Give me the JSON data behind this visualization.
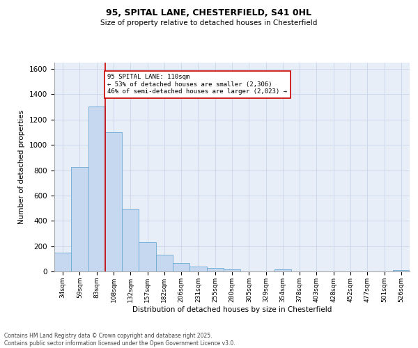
{
  "title_line1": "95, SPITAL LANE, CHESTERFIELD, S41 0HL",
  "title_line2": "Size of property relative to detached houses in Chesterfield",
  "xlabel": "Distribution of detached houses by size in Chesterfield",
  "ylabel": "Number of detached properties",
  "categories": [
    "34sqm",
    "59sqm",
    "83sqm",
    "108sqm",
    "132sqm",
    "157sqm",
    "182sqm",
    "206sqm",
    "231sqm",
    "255sqm",
    "280sqm",
    "305sqm",
    "329sqm",
    "354sqm",
    "378sqm",
    "403sqm",
    "428sqm",
    "452sqm",
    "477sqm",
    "501sqm",
    "526sqm"
  ],
  "values": [
    150,
    825,
    1305,
    1100,
    495,
    233,
    133,
    65,
    38,
    27,
    15,
    0,
    0,
    15,
    0,
    0,
    0,
    0,
    0,
    0,
    13
  ],
  "bar_color": "#c5d8f0",
  "bar_edge_color": "#6aaad4",
  "grid_color": "#c8d4e8",
  "bg_color": "#e8eef8",
  "red_line_index": 3,
  "annotation_text": "95 SPITAL LANE: 110sqm\n← 53% of detached houses are smaller (2,306)\n46% of semi-detached houses are larger (2,023) →",
  "annotation_box_color": "#ffffff",
  "annotation_border_color": "#cc0000",
  "ylim": [
    0,
    1650
  ],
  "yticks": [
    0,
    200,
    400,
    600,
    800,
    1000,
    1200,
    1400,
    1600
  ],
  "footer_line1": "Contains HM Land Registry data © Crown copyright and database right 2025.",
  "footer_line2": "Contains public sector information licensed under the Open Government Licence v3.0."
}
